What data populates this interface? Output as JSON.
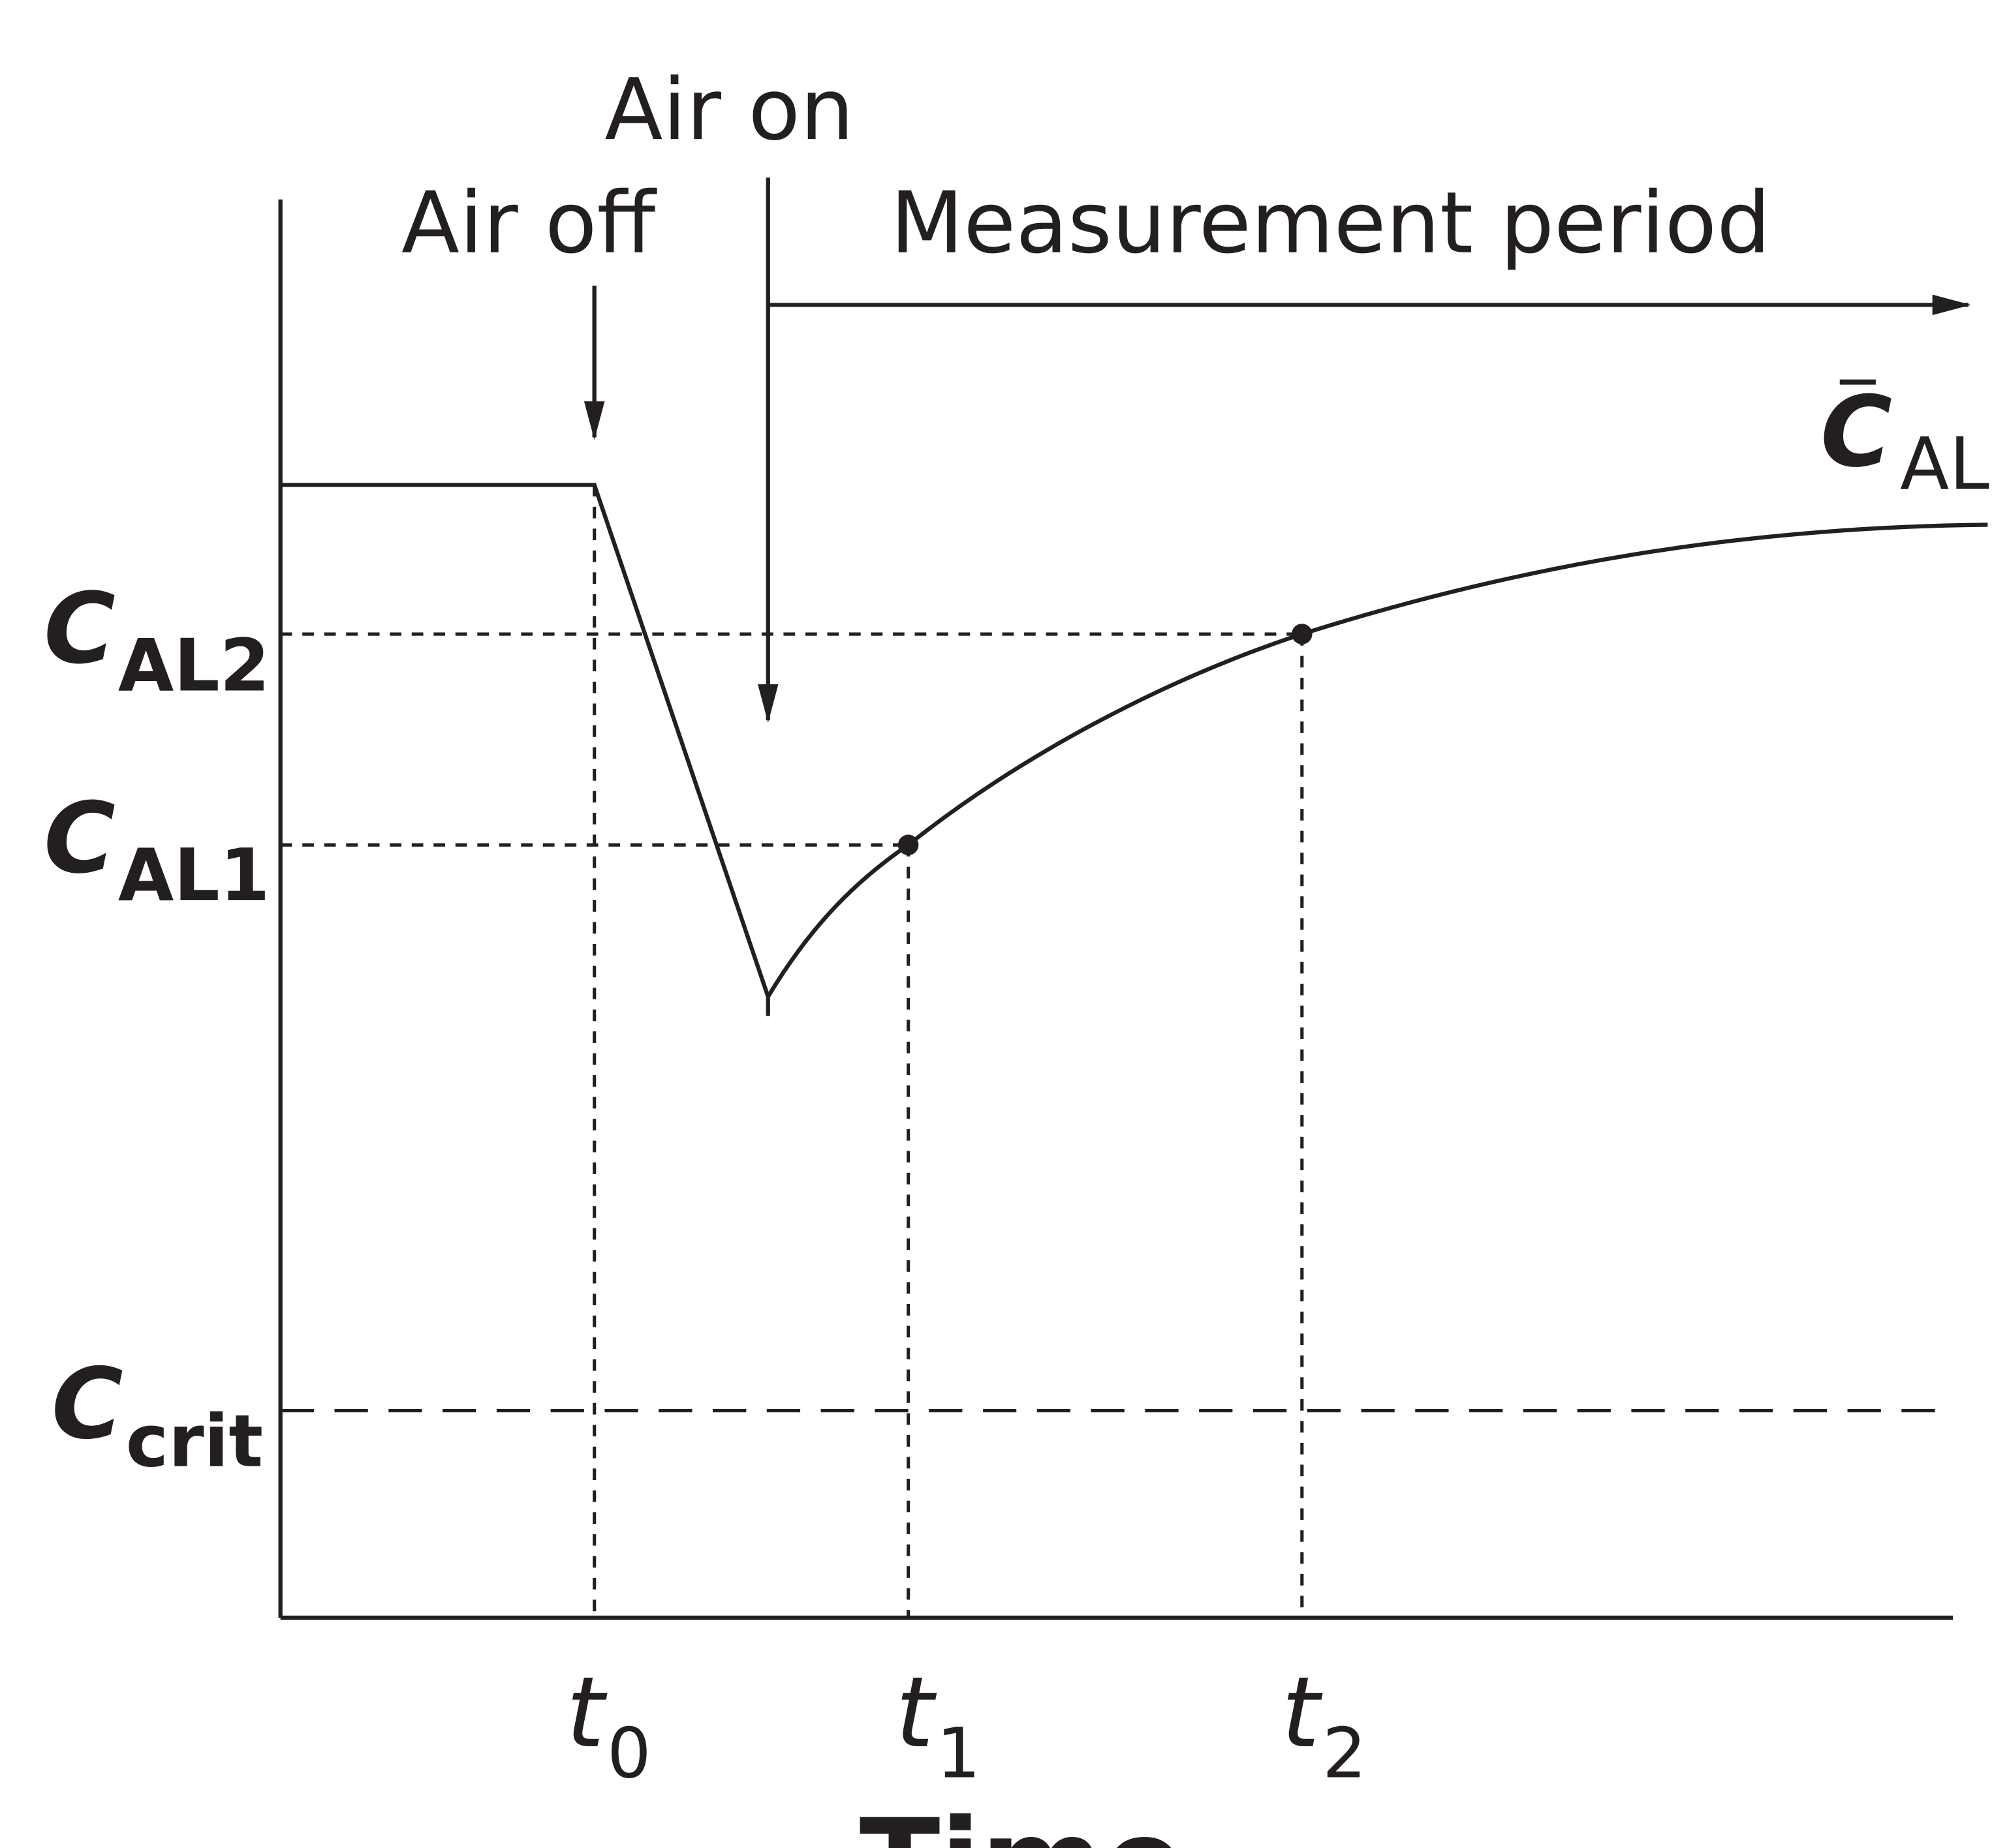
{
  "chart_data": {
    "type": "line",
    "xlabel": "Time",
    "x_ticks": [
      {
        "symbol": "t",
        "sub": "0"
      },
      {
        "symbol": "t",
        "sub": "1"
      },
      {
        "symbol": "t",
        "sub": "2"
      }
    ],
    "y_ticks": [
      {
        "symbol": "C",
        "sub": "AL2"
      },
      {
        "symbol": "C",
        "sub": "AL1"
      },
      {
        "symbol": "C",
        "sub": "crit"
      }
    ],
    "curve_label": {
      "symbol": "C",
      "sub": "AL",
      "overbar": true
    },
    "annotations": {
      "air_off": "Air off",
      "air_on": "Air on",
      "measurement_period": "Measurement period"
    },
    "grid": false
  }
}
